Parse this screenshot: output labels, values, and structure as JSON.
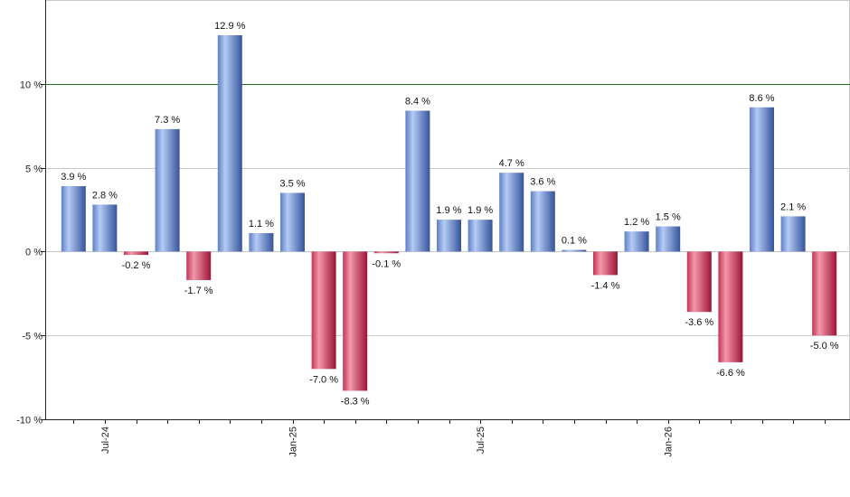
{
  "chart_data": {
    "type": "bar",
    "x": [
      "",
      "",
      "",
      "",
      "",
      "",
      "",
      "",
      "",
      "",
      "",
      "",
      "",
      "",
      "",
      "",
      "",
      "",
      "",
      "",
      "",
      "",
      "",
      "",
      ""
    ],
    "values": [
      3.9,
      2.8,
      -0.2,
      7.3,
      -1.7,
      12.9,
      1.1,
      3.5,
      -7.0,
      -8.3,
      -0.1,
      8.4,
      1.9,
      1.9,
      4.7,
      3.6,
      0.1,
      -1.4,
      1.2,
      1.5,
      -3.6,
      -6.6,
      8.6,
      2.1,
      -5.0
    ],
    "data_labels": [
      "3.9 %",
      "2.8 %",
      "-0.2 %",
      "7.3 %",
      "-1.7 %",
      "12.9 %",
      "1.1 %",
      "3.5 %",
      "-7.0 %",
      "-8.3 %",
      "-0.1 %",
      "8.4 %",
      "1.9 %",
      "1.9 %",
      "4.7 %",
      "3.6 %",
      "0.1 %",
      "-1.4 %",
      "1.2 %",
      "1.5 %",
      "-3.6 %",
      "-6.6 %",
      "8.6 %",
      "2.1 %",
      "-5.0 %"
    ],
    "x_ticks": [
      {
        "index": 1,
        "label": "Jul-24"
      },
      {
        "index": 7,
        "label": "Jan-25"
      },
      {
        "index": 13,
        "label": "Jul-25"
      },
      {
        "index": 19,
        "label": "Jan-26"
      }
    ],
    "y_ticks": [
      {
        "value": 10,
        "label": "10 %"
      },
      {
        "value": 5,
        "label": "5 %"
      },
      {
        "value": 0,
        "label": "0 %"
      },
      {
        "value": -5,
        "label": "-5 %"
      },
      {
        "value": -10,
        "label": "-10 %"
      }
    ],
    "ylim": [
      -10,
      15
    ],
    "reference_line": 10,
    "grid": true,
    "legend": "none",
    "colors": {
      "positive_light": "#a9c3f3",
      "positive_dark": "#3d5ea8",
      "negative_light": "#f08aa0",
      "negative_dark": "#a8183b",
      "reference_line": "#1d6b1d",
      "grid": "#c8c8c8",
      "axis": "#222222"
    }
  }
}
